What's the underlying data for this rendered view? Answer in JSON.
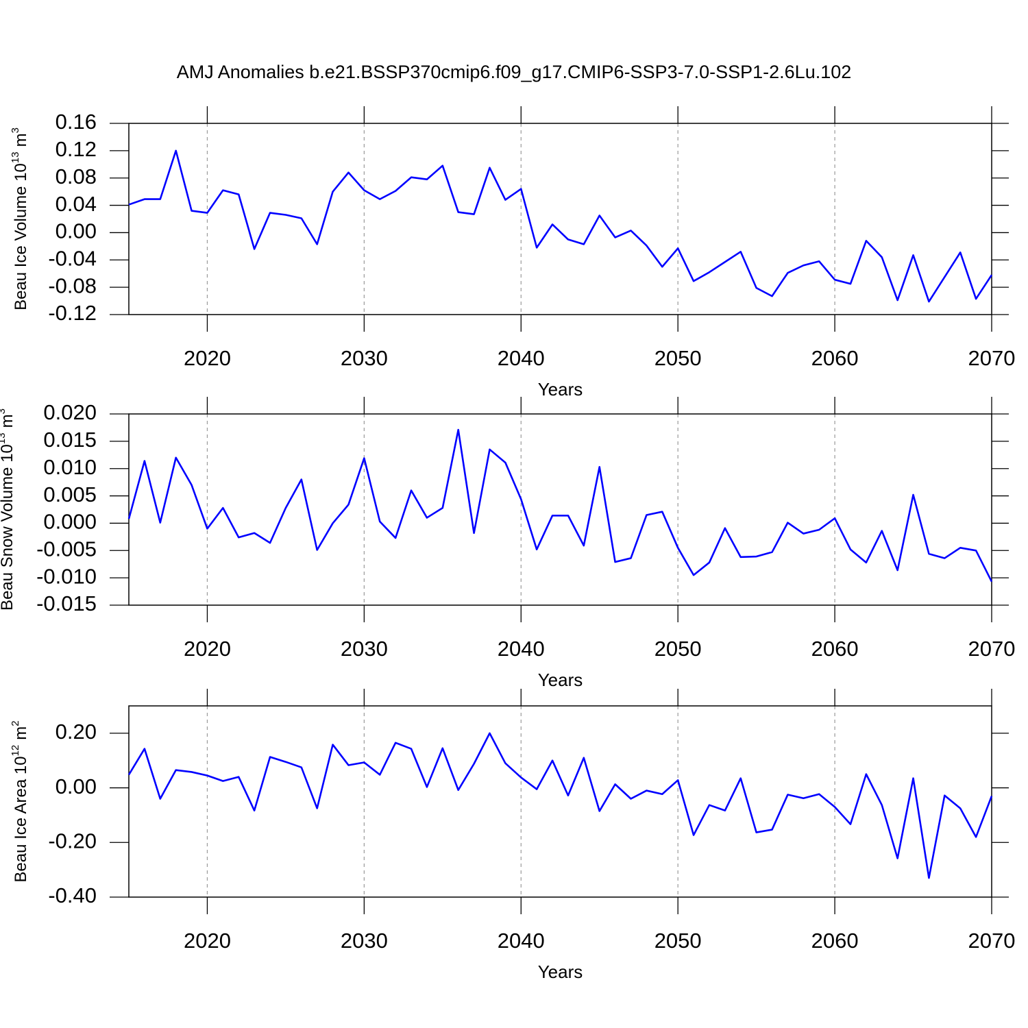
{
  "title": "AMJ Anomalies b.e21.BSSP370cmip6.f09_g17.CMIP6-SSP3-7.0-SSP1-2.6Lu.102",
  "chart_data": [
    {
      "type": "line",
      "xlabel": "Years",
      "ylabel": "Beau Ice Volume 10",
      "ylabel_exponent": "13",
      "ylabel_unit": "m",
      "ylabel_unit_exponent": "3",
      "x": [
        2015,
        2016,
        2017,
        2018,
        2019,
        2020,
        2021,
        2022,
        2023,
        2024,
        2025,
        2026,
        2027,
        2028,
        2029,
        2030,
        2031,
        2032,
        2033,
        2034,
        2035,
        2036,
        2037,
        2038,
        2039,
        2040,
        2041,
        2042,
        2043,
        2044,
        2045,
        2046,
        2047,
        2048,
        2049,
        2050,
        2051,
        2052,
        2053,
        2054,
        2055,
        2056,
        2057,
        2058,
        2059,
        2060,
        2061,
        2062,
        2063,
        2064,
        2065,
        2066,
        2067,
        2068,
        2069,
        2070
      ],
      "series": [
        {
          "name": "Beau Ice Volume",
          "color": "#0000ff",
          "values": [
            0.041,
            0.049,
            0.049,
            0.12,
            0.032,
            0.029,
            0.062,
            0.056,
            -0.024,
            0.029,
            0.026,
            0.021,
            -0.017,
            0.06,
            0.088,
            0.062,
            0.049,
            0.061,
            0.081,
            0.078,
            0.098,
            0.03,
            0.027,
            0.095,
            0.048,
            0.064,
            -0.022,
            0.012,
            -0.01,
            -0.017,
            0.025,
            -0.007,
            0.003,
            -0.019,
            -0.05,
            -0.023,
            -0.071,
            -0.058,
            -0.043,
            -0.028,
            -0.081,
            -0.093,
            -0.059,
            -0.048,
            -0.042,
            -0.069,
            -0.075,
            -0.012,
            -0.036,
            -0.099,
            -0.033,
            -0.101,
            -0.065,
            -0.029,
            -0.097,
            -0.062
          ]
        }
      ],
      "xlim": [
        2015,
        2070
      ],
      "xticks": [
        2020,
        2030,
        2040,
        2050,
        2060,
        2070
      ],
      "ylim": [
        -0.12,
        0.16
      ],
      "yticks": [
        -0.12,
        -0.08,
        -0.04,
        {
          "value": 0,
          "label": "0.00"
        },
        0.04,
        0.08,
        0.12,
        0.16
      ],
      "grid": true
    },
    {
      "type": "line",
      "xlabel": "Years",
      "ylabel": "Beau Snow Volume 10",
      "ylabel_exponent": "13",
      "ylabel_unit": "m",
      "ylabel_unit_exponent": "3",
      "x": [
        2015,
        2016,
        2017,
        2018,
        2019,
        2020,
        2021,
        2022,
        2023,
        2024,
        2025,
        2026,
        2027,
        2028,
        2029,
        2030,
        2031,
        2032,
        2033,
        2034,
        2035,
        2036,
        2037,
        2038,
        2039,
        2040,
        2041,
        2042,
        2043,
        2044,
        2045,
        2046,
        2047,
        2048,
        2049,
        2050,
        2051,
        2052,
        2053,
        2054,
        2055,
        2056,
        2057,
        2058,
        2059,
        2060,
        2061,
        2062,
        2063,
        2064,
        2065,
        2066,
        2067,
        2068,
        2069,
        2070
      ],
      "series": [
        {
          "name": "Beau Snow Volume",
          "color": "#0000ff",
          "values": [
            0.0008,
            0.0114,
            0.0001,
            0.012,
            0.007,
            -0.001,
            0.0028,
            -0.0026,
            -0.0018,
            -0.0036,
            0.0028,
            0.008,
            -0.0049,
            0.0,
            0.0034,
            0.0119,
            0.0003,
            -0.0027,
            0.006,
            0.001,
            0.0028,
            0.0171,
            -0.0018,
            0.0135,
            0.0111,
            0.0044,
            -0.0048,
            0.0014,
            0.0014,
            -0.0041,
            0.0103,
            -0.0071,
            -0.0064,
            0.0015,
            0.0021,
            -0.0045,
            -0.0095,
            -0.0072,
            -0.0009,
            -0.0062,
            -0.0061,
            -0.0053,
            0.0001,
            -0.0019,
            -0.0012,
            0.0009,
            -0.0048,
            -0.0072,
            -0.0014,
            -0.0086,
            0.0052,
            -0.0056,
            -0.0064,
            -0.0045,
            -0.005,
            -0.0107
          ]
        }
      ],
      "xlim": [
        2015,
        2070
      ],
      "xticks": [
        2020,
        2030,
        2040,
        2050,
        2060,
        2070
      ],
      "ylim": [
        -0.015,
        0.02
      ],
      "yticks": [
        -0.015,
        {
          "value": -0.01,
          "label": "-0.010"
        },
        -0.005,
        {
          "value": 0,
          "label": "0.000"
        },
        0.005,
        {
          "value": 0.01,
          "label": "0.010"
        },
        0.015,
        {
          "value": 0.02,
          "label": "0.020"
        }
      ],
      "grid": true
    },
    {
      "type": "line",
      "xlabel": "Years",
      "ylabel": "Beau Ice Area 10",
      "ylabel_exponent": "12",
      "ylabel_unit": "m",
      "ylabel_unit_exponent": "2",
      "x": [
        2015,
        2016,
        2017,
        2018,
        2019,
        2020,
        2021,
        2022,
        2023,
        2024,
        2025,
        2026,
        2027,
        2028,
        2029,
        2030,
        2031,
        2032,
        2033,
        2034,
        2035,
        2036,
        2037,
        2038,
        2039,
        2040,
        2041,
        2042,
        2043,
        2044,
        2045,
        2046,
        2047,
        2048,
        2049,
        2050,
        2051,
        2052,
        2053,
        2054,
        2055,
        2056,
        2057,
        2058,
        2059,
        2060,
        2061,
        2062,
        2063,
        2064,
        2065,
        2066,
        2067,
        2068,
        2069,
        2070
      ],
      "series": [
        {
          "name": "Beau Ice Area",
          "color": "#0000ff",
          "values": [
            0.048,
            0.143,
            -0.04,
            0.065,
            0.058,
            0.045,
            0.025,
            0.04,
            -0.083,
            0.113,
            0.095,
            0.075,
            -0.075,
            0.158,
            0.083,
            0.093,
            0.048,
            0.165,
            0.143,
            0.003,
            0.145,
            -0.008,
            0.088,
            0.2,
            0.09,
            0.038,
            -0.005,
            0.1,
            -0.028,
            0.11,
            -0.085,
            0.013,
            -0.04,
            -0.01,
            -0.023,
            0.028,
            -0.173,
            -0.063,
            -0.083,
            0.035,
            -0.163,
            -0.153,
            -0.025,
            -0.038,
            -0.023,
            -0.07,
            -0.133,
            0.05,
            -0.063,
            -0.258,
            0.035,
            -0.33,
            -0.028,
            -0.075,
            -0.18,
            -0.03
          ]
        }
      ],
      "xlim": [
        2015,
        2070
      ],
      "xticks": [
        2020,
        2030,
        2040,
        2050,
        2060,
        2070
      ],
      "ylim": [
        -0.4,
        0.3
      ],
      "yticks": [
        {
          "value": -0.4,
          "label": "-0.40"
        },
        {
          "value": -0.2,
          "label": "-0.20"
        },
        {
          "value": 0,
          "label": "0.00"
        },
        {
          "value": 0.2,
          "label": "0.20"
        }
      ],
      "grid": true
    }
  ]
}
